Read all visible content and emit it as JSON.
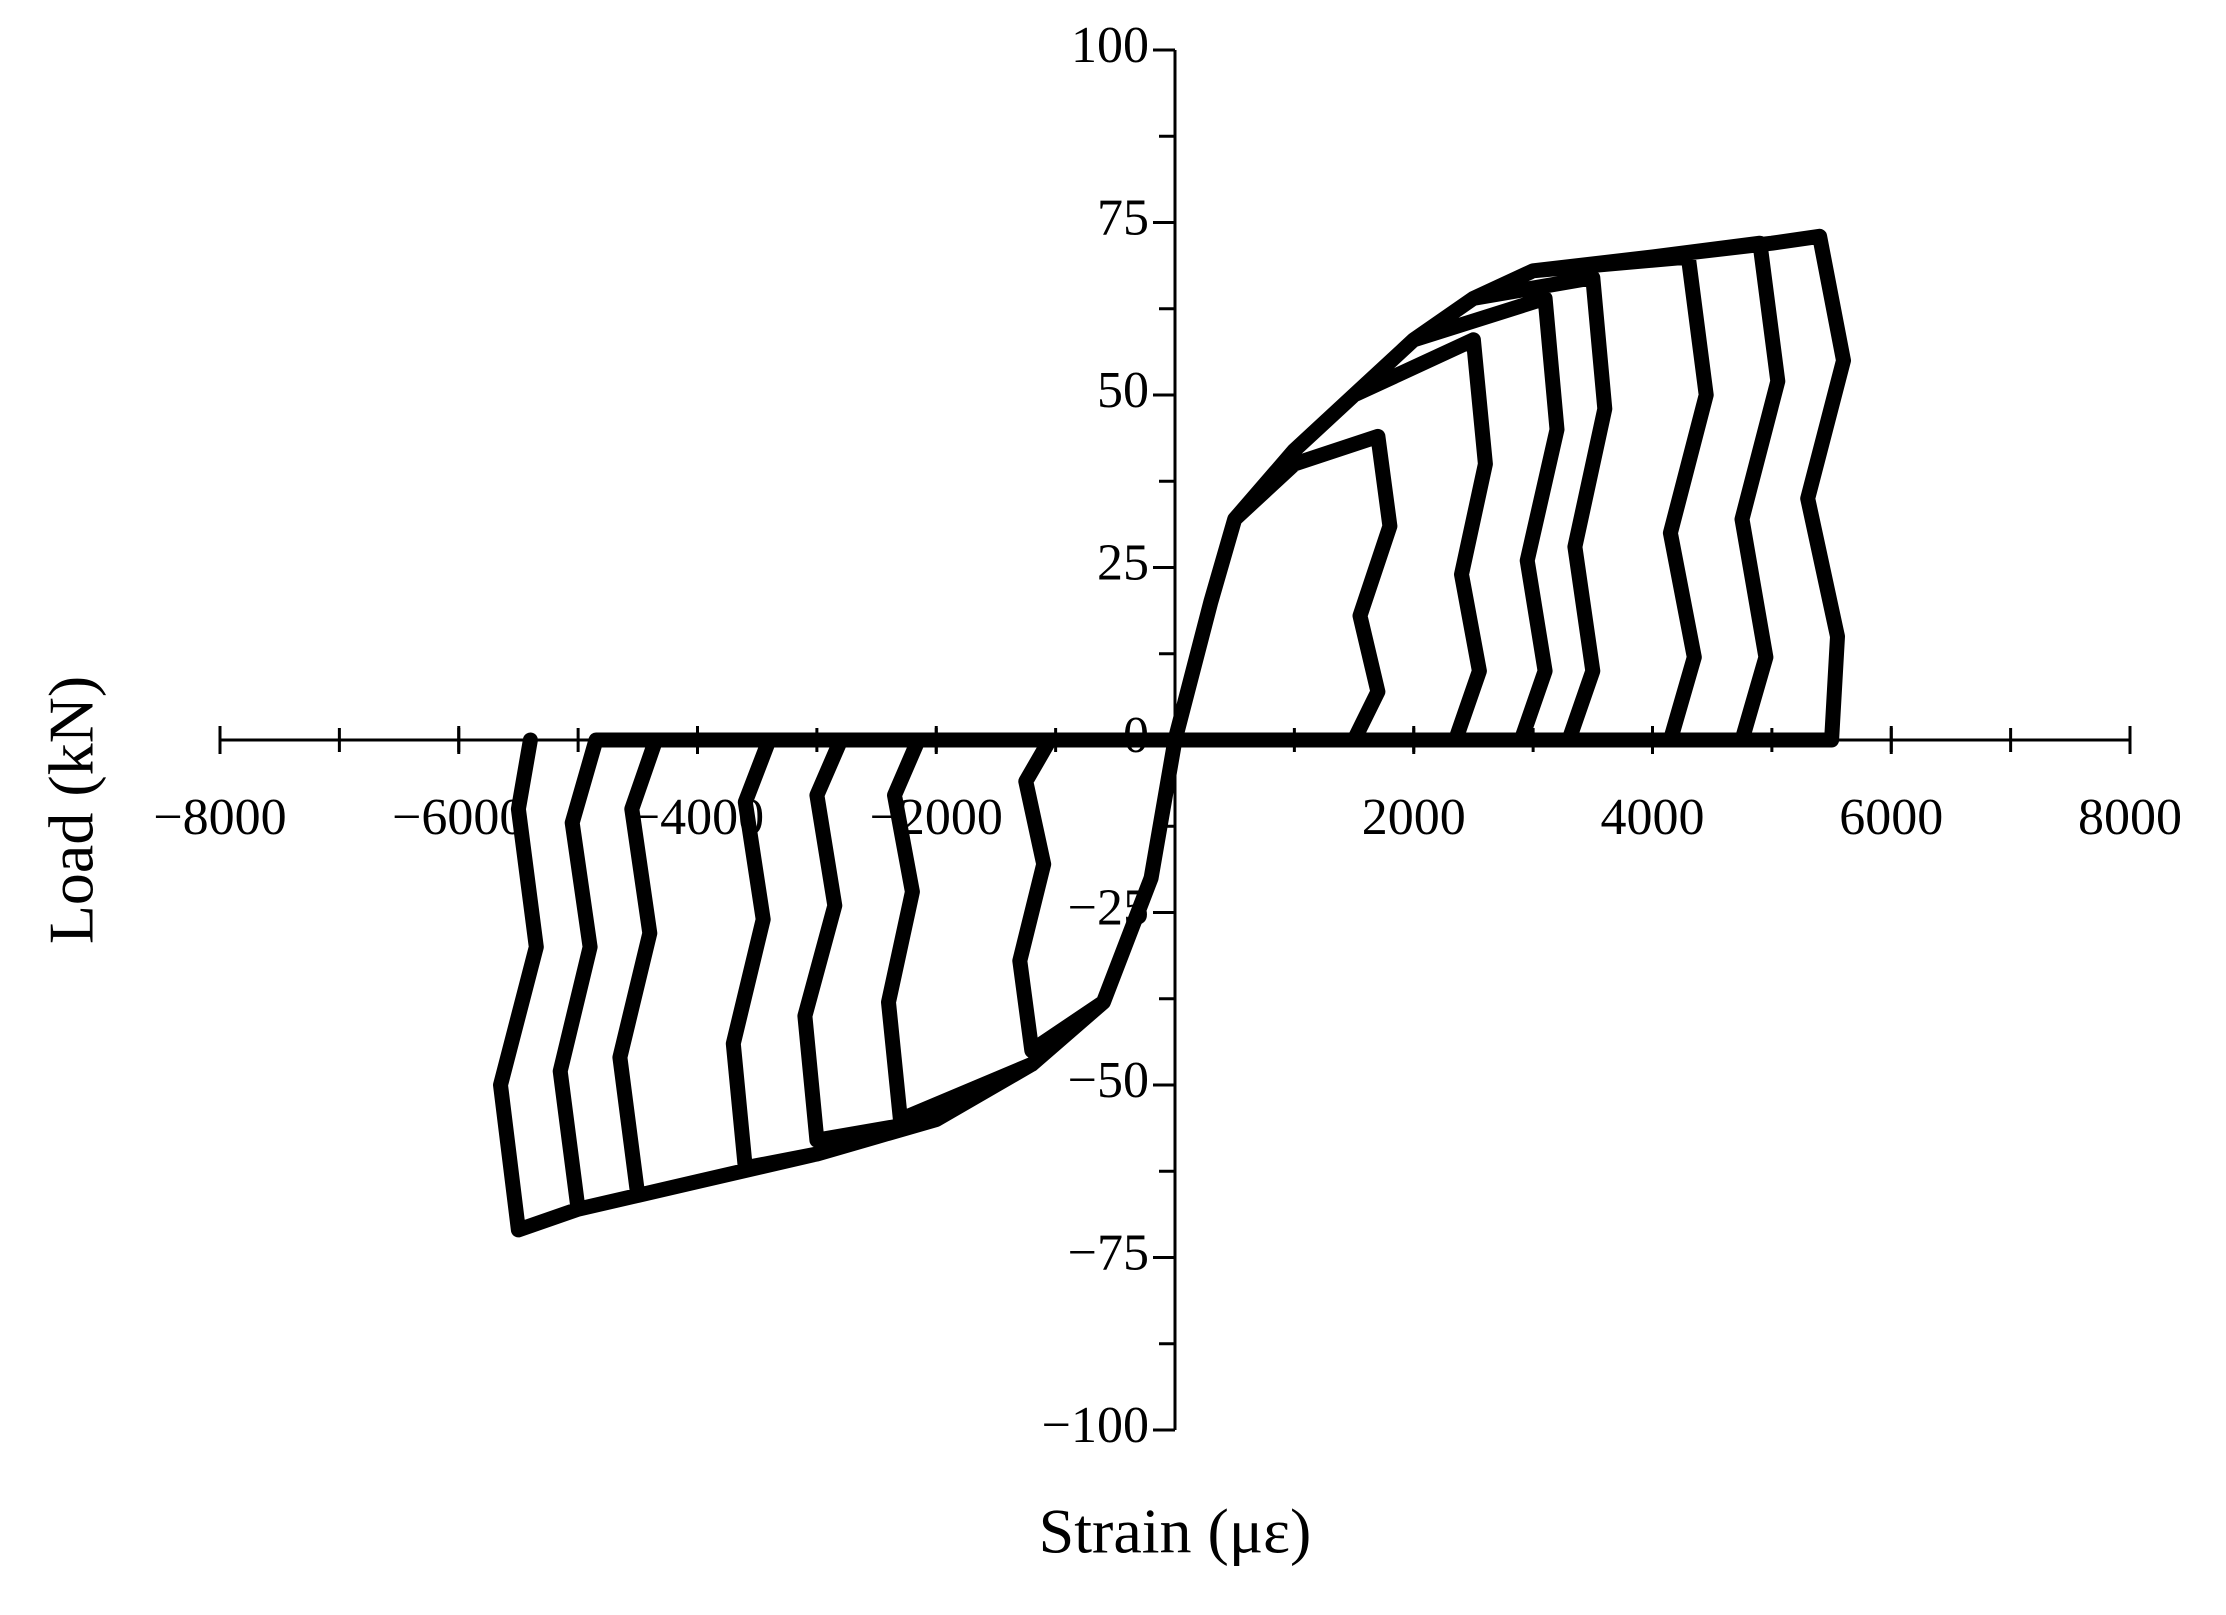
{
  "chart_data": {
    "type": "line",
    "x_label": "Strain (με)",
    "y_label": "Load (kN)",
    "color": "#000000",
    "xlim": [
      -8000,
      8000
    ],
    "ylim": [
      -100,
      100
    ],
    "xticks": [
      {
        "value": -8000,
        "label": "−8000"
      },
      {
        "value": -6000,
        "label": "−6000"
      },
      {
        "value": -4000,
        "label": "−4000"
      },
      {
        "value": -2000,
        "label": "−2000"
      },
      2000,
      4000,
      6000,
      8000
    ],
    "yticks": [
      {
        "value": -100,
        "label": "−100"
      },
      {
        "value": -75,
        "label": "−75"
      },
      {
        "value": -50,
        "label": "−50"
      },
      {
        "value": -25,
        "label": "−25"
      },
      0,
      25,
      50,
      75,
      100
    ],
    "x": [
      0,
      300,
      500,
      1000,
      1700,
      1800,
      1550,
      1700,
      1500,
      0,
      -200,
      -600,
      -1200,
      -1300,
      -1100,
      -1250,
      -1050,
      0,
      300,
      500,
      1000,
      1500,
      2500,
      2600,
      2400,
      2550,
      2350,
      0,
      -200,
      -600,
      -1200,
      -2300,
      -2400,
      -2200,
      -2350,
      -2150,
      0,
      300,
      500,
      1000,
      1500,
      2000,
      3100,
      3200,
      2950,
      3100,
      2900,
      0,
      -200,
      -600,
      -1200,
      -2000,
      -3000,
      -3100,
      -2850,
      -3000,
      -2800,
      0,
      300,
      500,
      1000,
      1500,
      2000,
      2500,
      3500,
      3600,
      3350,
      3500,
      3300,
      0,
      -200,
      -600,
      -1200,
      -2000,
      -3000,
      -3600,
      -3700,
      -3450,
      -3600,
      -3400,
      0,
      300,
      500,
      1000,
      1500,
      2000,
      2500,
      3000,
      4300,
      4450,
      4150,
      4350,
      4150,
      0,
      -200,
      -600,
      -1200,
      -2000,
      -3000,
      -4000,
      -4500,
      -4650,
      -4400,
      -4550,
      -4350,
      0,
      300,
      500,
      1000,
      1500,
      2000,
      2500,
      3000,
      4000,
      4900,
      5050,
      4750,
      4950,
      4750,
      0,
      -200,
      -600,
      -1200,
      -2000,
      -3000,
      -4000,
      -5000,
      -5150,
      -4900,
      -5050,
      -4850,
      0,
      300,
      500,
      1000,
      1500,
      2000,
      2500,
      3000,
      4000,
      5000,
      5400,
      5600,
      5300,
      5550,
      5500,
      0,
      -200,
      -600,
      -1200,
      -2000,
      -3000,
      -4000,
      -5000,
      -5500,
      -5650,
      -5350,
      -5500,
      -5400
    ],
    "values": [
      0,
      20,
      32,
      40,
      44,
      31,
      18,
      7,
      0,
      0,
      -20,
      -38,
      -45,
      -32,
      -18,
      -6,
      0,
      0,
      20,
      32,
      42,
      50,
      58,
      40,
      24,
      10,
      0,
      0,
      -20,
      -38,
      -47,
      -55,
      -38,
      -22,
      -8,
      0,
      0,
      20,
      32,
      42,
      50,
      58,
      64,
      45,
      26,
      10,
      0,
      0,
      -20,
      -38,
      -47,
      -55,
      -58,
      -40,
      -24,
      -8,
      0,
      0,
      20,
      32,
      42,
      50,
      58,
      64,
      67,
      48,
      28,
      10,
      0,
      0,
      -20,
      -38,
      -47,
      -55,
      -60,
      -62,
      -44,
      -26,
      -9,
      0,
      0,
      20,
      32,
      42,
      50,
      58,
      64,
      68,
      70,
      50,
      30,
      12,
      0,
      0,
      -20,
      -38,
      -47,
      -55,
      -60,
      -64,
      -66,
      -46,
      -28,
      -10,
      0,
      0,
      20,
      32,
      42,
      50,
      58,
      64,
      68,
      70,
      72,
      52,
      32,
      12,
      0,
      0,
      -20,
      -38,
      -47,
      -55,
      -60,
      -64,
      -68,
      -48,
      -30,
      -12,
      0,
      0,
      20,
      32,
      42,
      50,
      58,
      64,
      68,
      70,
      72,
      73,
      55,
      35,
      15,
      0,
      0,
      -20,
      -38,
      -47,
      -55,
      -60,
      -64,
      -68,
      -71,
      -50,
      -30,
      -10,
      0
    ]
  }
}
